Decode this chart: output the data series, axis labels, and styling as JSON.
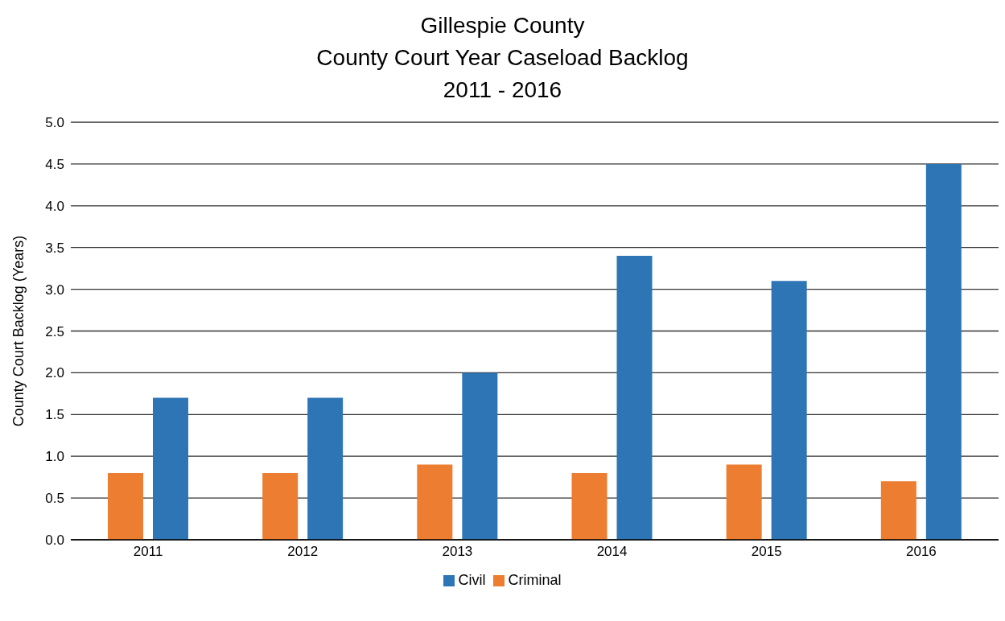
{
  "chart_data": {
    "type": "bar",
    "title": "Gillespie County\nCounty Court Year Caseload Backlog\n2011 - 2016",
    "ylabel": "County Court Backlog (Years)",
    "categories": [
      "2011",
      "2012",
      "2013",
      "2014",
      "2015",
      "2016"
    ],
    "series": [
      {
        "name": "Criminal",
        "color": "#ed7d31",
        "values": [
          0.8,
          0.8,
          0.9,
          0.8,
          0.9,
          0.7
        ]
      },
      {
        "name": "Civil",
        "color": "#2e75b6",
        "values": [
          1.7,
          1.7,
          2.0,
          3.4,
          3.1,
          4.5
        ]
      }
    ],
    "ylim": [
      0,
      5
    ],
    "yticks": [
      {
        "value": 0,
        "label": "0.0"
      },
      {
        "value": 0.5,
        "label": "0.5"
      },
      {
        "value": 1,
        "label": "1.0"
      },
      {
        "value": 1.5,
        "label": "1.5"
      },
      {
        "value": 2,
        "label": "2.0"
      },
      {
        "value": 2.5,
        "label": "2.5"
      },
      {
        "value": 3,
        "label": "3.0"
      },
      {
        "value": 3.5,
        "label": "3.5"
      },
      {
        "value": 4,
        "label": "4.0"
      },
      {
        "value": 4.5,
        "label": "4.5"
      },
      {
        "value": 5,
        "label": "5.0"
      }
    ],
    "grid": "y",
    "legend": "bottom"
  }
}
